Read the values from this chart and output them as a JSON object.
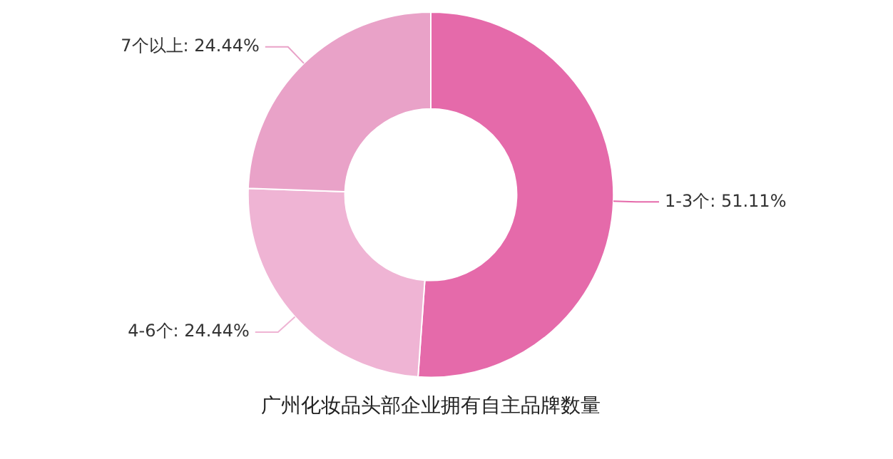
{
  "chart_data": {
    "type": "donut",
    "title": "广州化妆品头部企业拥有自主品牌数量",
    "categories": [
      "1-3个",
      "4-6个",
      "7个以上"
    ],
    "values": [
      51.11,
      24.44,
      24.44
    ],
    "colors": [
      "#e56aaa",
      "#efb4d4",
      "#e9a2c8"
    ],
    "value_labels": [
      "51.11%",
      "24.44%",
      "24.44%"
    ],
    "legend": false
  }
}
